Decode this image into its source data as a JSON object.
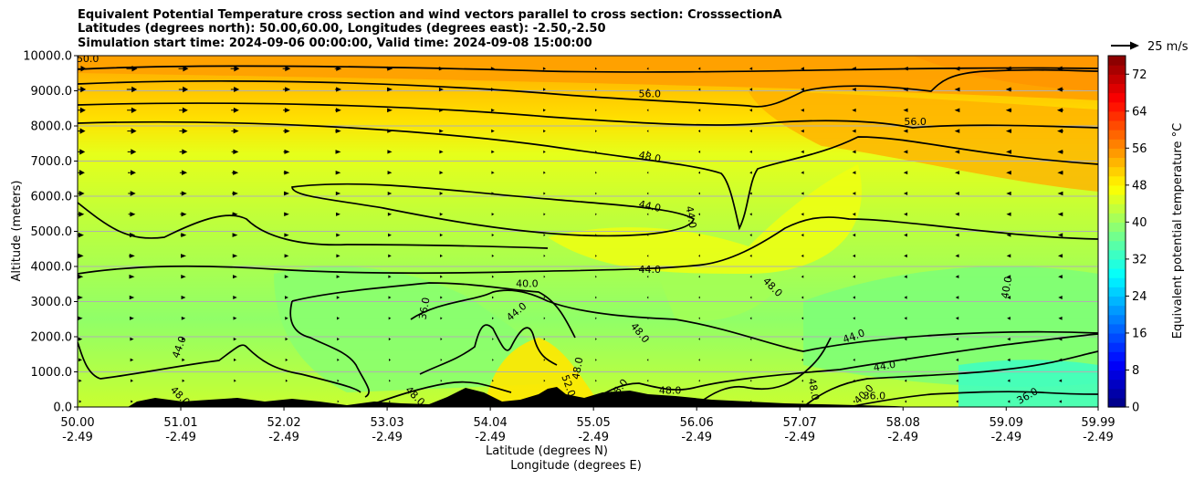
{
  "chart_data": {
    "type": "heatmap",
    "title": [
      "Equivalent Potential Temperature cross section and wind vectors parallel to cross section: CrosssectionA",
      "Latitudes (degrees north): 50.00,60.00, Longitudes (degrees east): -2.50,-2.50",
      "Simulation start time: 2024-09-06 00:00:00, Valid time: 2024-09-08 15:00:00"
    ],
    "ylabel": "Altitude (meters)",
    "xlabel": "Latitude (degrees N)",
    "xlabel2": "Longitude (degrees E)",
    "ylim": [
      0,
      10000
    ],
    "y_ticks": [
      "0.0",
      "1000.0",
      "2000.0",
      "3000.0",
      "4000.0",
      "5000.0",
      "6000.0",
      "7000.0",
      "8000.0",
      "9000.0",
      "10000.0"
    ],
    "y_tick_values": [
      0,
      1000,
      2000,
      3000,
      4000,
      5000,
      6000,
      7000,
      8000,
      9000,
      10000
    ],
    "x_ticks_lat": [
      "50.00",
      "51.01",
      "52.02",
      "53.03",
      "54.04",
      "55.05",
      "56.06",
      "57.07",
      "58.08",
      "59.09",
      "59.99"
    ],
    "x_ticks_lon": [
      "-2.49",
      "-2.49",
      "-2.49",
      "-2.49",
      "-2.49",
      "-2.49",
      "-2.49",
      "-2.49",
      "-2.49",
      "-2.49",
      "-2.49"
    ],
    "x_tick_values": [
      50.0,
      51.01,
      52.02,
      53.03,
      54.04,
      55.05,
      56.06,
      57.07,
      58.08,
      59.09,
      59.99
    ],
    "xlim": [
      50.0,
      59.99
    ],
    "grid": "horizontal",
    "colorbar": {
      "label": "Equivalent potential temperature $^\\circ$C",
      "label_display": "Equivalent potential temperature °C",
      "range": [
        0,
        76
      ],
      "ticks": [
        "0",
        "8",
        "16",
        "24",
        "32",
        "40",
        "48",
        "56",
        "64",
        "72"
      ],
      "tick_values": [
        0,
        8,
        16,
        24,
        32,
        40,
        48,
        56,
        64,
        72
      ],
      "colormap": "jet"
    },
    "quiver_key": "25 m/s",
    "contour_labels": [
      {
        "text": "56.0",
        "lat": 55.6,
        "z": 8900,
        "angle": 0
      },
      {
        "text": "56.0",
        "lat": 58.2,
        "z": 8100,
        "angle": 0
      },
      {
        "text": "48.0",
        "lat": 55.6,
        "z": 7100,
        "angle": 12
      },
      {
        "text": "44.0",
        "lat": 55.6,
        "z": 5700,
        "angle": 12
      },
      {
        "text": "44.0",
        "lat": 56.0,
        "z": 5400,
        "angle": 80
      },
      {
        "text": "44.0",
        "lat": 55.6,
        "z": 3900,
        "angle": 0
      },
      {
        "text": "48.0",
        "lat": 56.8,
        "z": 3400,
        "angle": 45
      },
      {
        "text": "48.0",
        "lat": 55.5,
        "z": 2100,
        "angle": 50
      },
      {
        "text": "40.0",
        "lat": 54.4,
        "z": 3500,
        "angle": 0
      },
      {
        "text": "44.0",
        "lat": 54.3,
        "z": 2700,
        "angle": -40
      },
      {
        "text": "36.0",
        "lat": 53.4,
        "z": 2800,
        "angle": -80
      },
      {
        "text": "44.0",
        "lat": 57.6,
        "z": 2000,
        "angle": -20
      },
      {
        "text": "44.0",
        "lat": 57.9,
        "z": 1150,
        "angle": -10
      },
      {
        "text": "40.0",
        "lat": 59.1,
        "z": 3400,
        "angle": -80
      },
      {
        "text": "44.0",
        "lat": 51.0,
        "z": 1700,
        "angle": -70
      },
      {
        "text": "48.0",
        "lat": 51.0,
        "z": 300,
        "angle": 45
      },
      {
        "text": "48.0",
        "lat": 53.3,
        "z": 300,
        "angle": 45
      },
      {
        "text": "48.0",
        "lat": 54.9,
        "z": 1100,
        "angle": -80
      },
      {
        "text": "52.0",
        "lat": 54.8,
        "z": 600,
        "angle": 70
      },
      {
        "text": "48.0",
        "lat": 55.3,
        "z": 500,
        "angle": -50
      },
      {
        "text": "48.0",
        "lat": 55.8,
        "z": 450,
        "angle": 0
      },
      {
        "text": "48.0",
        "lat": 57.2,
        "z": 500,
        "angle": 80
      },
      {
        "text": "40.0",
        "lat": 57.7,
        "z": 350,
        "angle": -45
      },
      {
        "text": "36.0",
        "lat": 57.8,
        "z": 300,
        "angle": 0
      },
      {
        "text": "36.0",
        "lat": 59.3,
        "z": 300,
        "angle": -30
      },
      {
        "text": "50.0",
        "lat": 50.1,
        "z": 9900,
        "angle": 0
      }
    ]
  }
}
